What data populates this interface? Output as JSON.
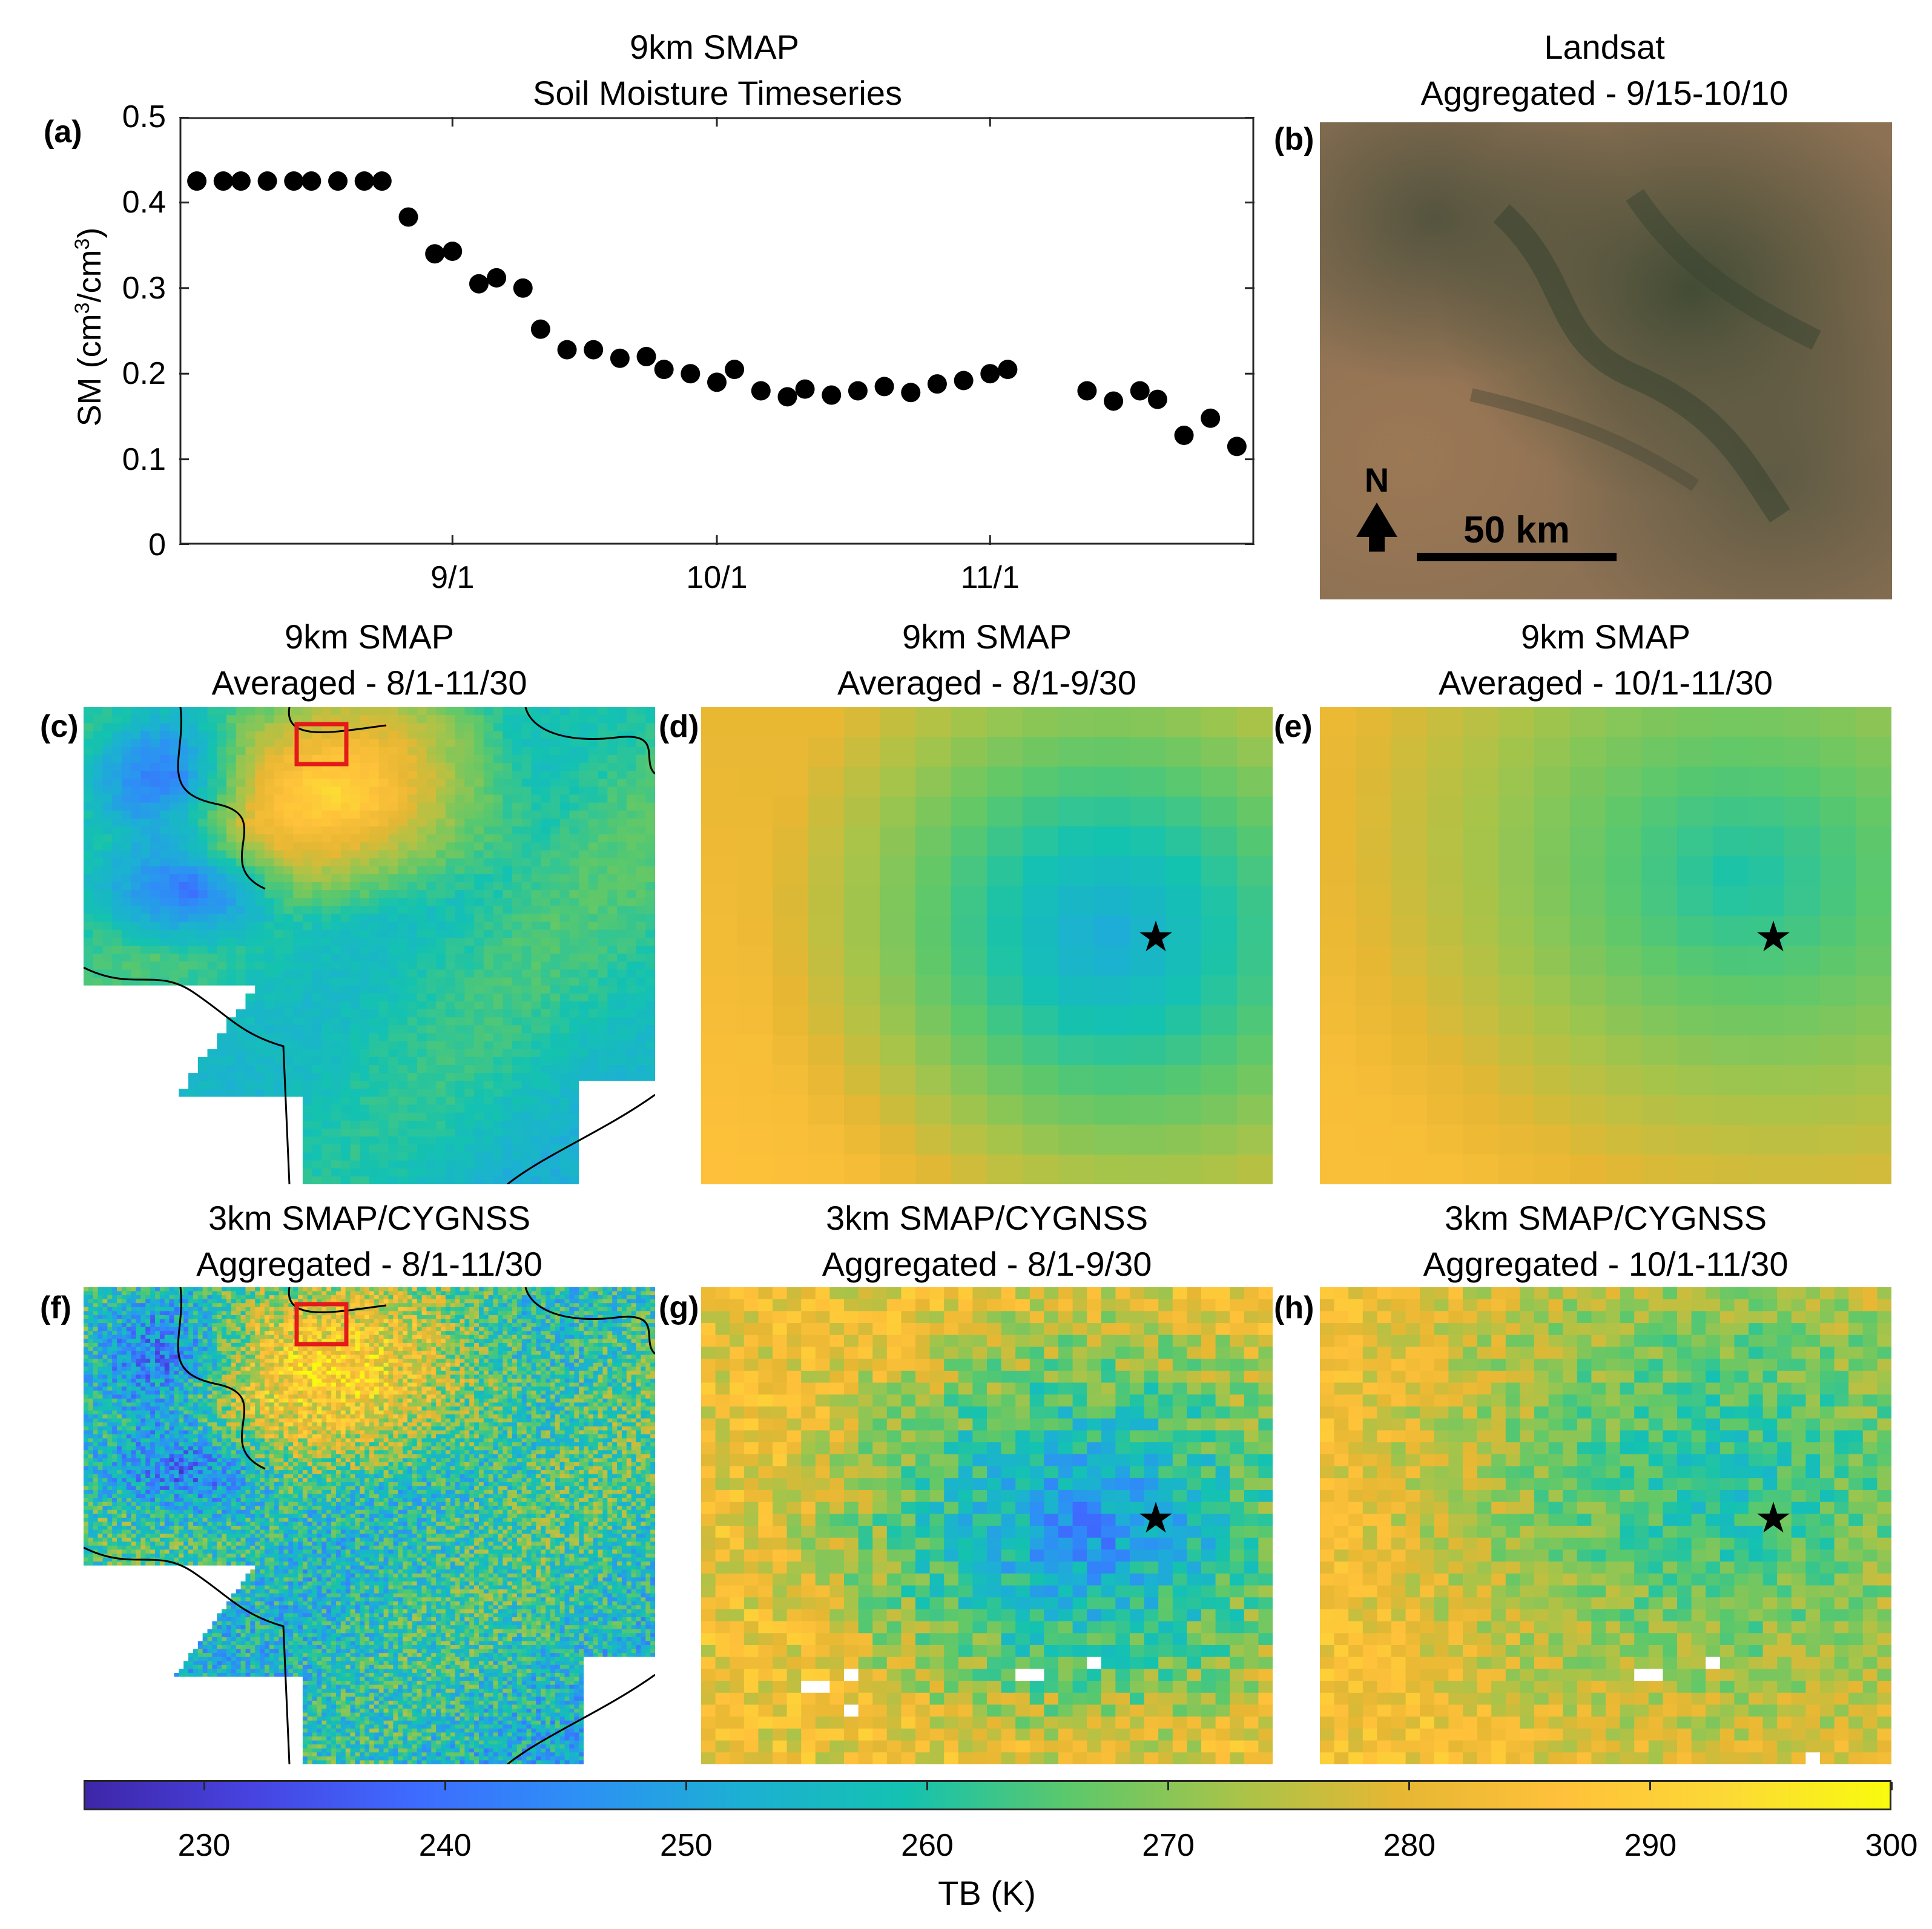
{
  "chart_data": [
    {
      "panel": "(a)",
      "type": "scatter",
      "title": [
        "9km SMAP",
        "Soil Moisture Timeseries"
      ],
      "ylabel": "SM (cm³/cm³)",
      "ylabel_parts": {
        "main": "SM (cm",
        "exp": "3",
        "slash": "/cm",
        "end": ")"
      },
      "ylim": [
        0,
        0.5
      ],
      "yticks": [
        "0",
        "0.1",
        "0.2",
        "0.3",
        "0.4",
        "0.5"
      ],
      "ytick_values": [
        0,
        0.1,
        0.2,
        0.3,
        0.4,
        0.5
      ],
      "x_range_days": [
        0,
        122
      ],
      "xticks": [
        "9/1",
        "10/1",
        "11/1"
      ],
      "xtick_days": [
        31,
        61,
        92
      ],
      "x_days": [
        2,
        5,
        7,
        10,
        13,
        15,
        18,
        21,
        23,
        26,
        29,
        31,
        34,
        36,
        39,
        41,
        44,
        47,
        50,
        53,
        55,
        58,
        61,
        63,
        66,
        69,
        71,
        74,
        77,
        80,
        83,
        86,
        89,
        92,
        94,
        103,
        106,
        109,
        111,
        114,
        117,
        120
      ],
      "values": [
        0.425,
        0.425,
        0.425,
        0.425,
        0.425,
        0.425,
        0.425,
        0.425,
        0.425,
        0.383,
        0.34,
        0.343,
        0.305,
        0.312,
        0.3,
        0.252,
        0.228,
        0.228,
        0.218,
        0.22,
        0.205,
        0.2,
        0.19,
        0.205,
        0.18,
        0.173,
        0.182,
        0.175,
        0.18,
        0.185,
        0.178,
        0.188,
        0.192,
        0.2,
        0.205,
        0.18,
        0.168,
        0.18,
        0.17,
        0.128,
        0.148,
        0.115
      ]
    },
    {
      "panel": "(b)",
      "type": "image",
      "title": [
        "Landsat",
        "Aggregated - 9/15-10/10"
      ],
      "north_label": "N",
      "scale_label": "50 km"
    },
    {
      "panel": "(c)",
      "type": "heatmap",
      "title": [
        "9km SMAP",
        "Averaged - 8/1-11/30"
      ]
    },
    {
      "panel": "(d)",
      "type": "heatmap",
      "title": [
        "9km SMAP",
        "Averaged - 8/1-9/30"
      ],
      "marker": "★"
    },
    {
      "panel": "(e)",
      "type": "heatmap",
      "title": [
        "9km SMAP",
        "Averaged - 10/1-11/30"
      ],
      "marker": "★"
    },
    {
      "panel": "(f)",
      "type": "heatmap",
      "title": [
        "3km SMAP/CYGNSS",
        "Aggregated - 8/1-11/30"
      ]
    },
    {
      "panel": "(g)",
      "type": "heatmap",
      "title": [
        "3km SMAP/CYGNSS",
        "Aggregated - 8/1-9/30"
      ],
      "marker": "★"
    },
    {
      "panel": "(h)",
      "type": "heatmap",
      "title": [
        "3km SMAP/CYGNSS",
        "Aggregated - 10/1-11/30"
      ],
      "marker": "★"
    }
  ],
  "colorbar": {
    "label": "TB (K)",
    "min": 225,
    "max": 300,
    "ticks": [
      "230",
      "240",
      "250",
      "260",
      "270",
      "280",
      "290",
      "300"
    ],
    "tick_values": [
      230,
      240,
      250,
      260,
      270,
      280,
      290,
      300
    ],
    "colors": [
      "#3e26a8",
      "#4743e0",
      "#3e6bff",
      "#2d90f5",
      "#1cb0d3",
      "#14c2b0",
      "#5cc86b",
      "#a6c44a",
      "#e6b733",
      "#ffc13a",
      "#fcd936",
      "#f9fb0e"
    ]
  }
}
